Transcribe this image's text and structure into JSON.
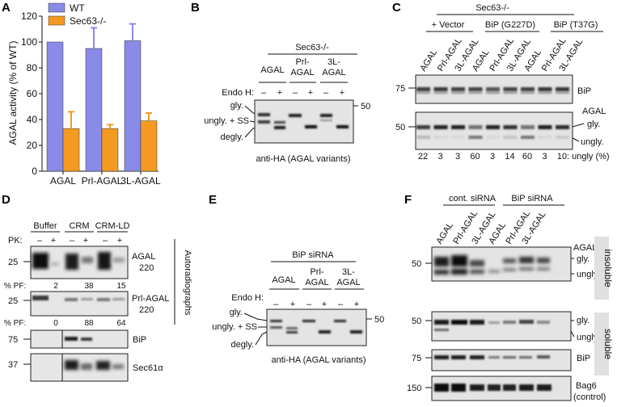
{
  "panels": [
    "A",
    "B",
    "C",
    "D",
    "E",
    "F"
  ],
  "chart_data": {
    "type": "bar",
    "categories": [
      "AGAL",
      "Prl-AGAL",
      "3L-AGAL"
    ],
    "series": [
      {
        "name": "WT",
        "values": [
          100,
          95,
          101
        ],
        "errors": [
          0,
          16,
          13
        ],
        "color": "#8a8ae8"
      },
      {
        "name": "Sec63-/-",
        "values": [
          33,
          33,
          39
        ],
        "errors": [
          13,
          3,
          6
        ],
        "color": "#f49a22"
      }
    ],
    "ylabel": "AGAL activity (% of WT)",
    "ylim": [
      0,
      120
    ],
    "yticks": [
      "0",
      "20",
      "40",
      "60",
      "80",
      "100",
      "120"
    ],
    "legend": "top-left"
  },
  "panelB": {
    "group": "Sec63-/-",
    "lanes": [
      "AGAL",
      "Prl-",
      "AGAL",
      "3L-",
      "AGAL"
    ],
    "endo_label": "Endo H:",
    "signs": [
      "–",
      "+",
      "–",
      "+",
      "–",
      "+"
    ],
    "mw": "50",
    "bands": [
      "gly.",
      "ungly. + SS",
      "degly."
    ],
    "caption": "anti-HA (AGAL variants)"
  },
  "panelC": {
    "group": "Sec63-/-",
    "sub": [
      "+ Vector",
      "BiP (G227D)",
      "BiP (T37G)"
    ],
    "lanes": [
      "AGAL",
      "Prl-AGAL",
      "3L-AGAL",
      "AGAL",
      "Prl-AGAL",
      "3L-AGAL",
      "AGAL",
      "Prl-AGAL",
      "3L-AGAL"
    ],
    "mw_top": "75",
    "mw_bottom": "50",
    "blot_top": "BiP",
    "blot_bottom_title": "AGAL",
    "blot_bottom_bands": [
      "gly.",
      "ungly."
    ],
    "ungly": [
      "22",
      "3",
      "3",
      "60",
      "3",
      "14",
      "60",
      "3",
      "10"
    ],
    "ungly_label": ": ungly (%)"
  },
  "panelD": {
    "groups": [
      "Buffer",
      "CRM",
      "CRM-LD"
    ],
    "pk": "PK:",
    "signs": [
      "–",
      "+",
      "–",
      "+",
      "–",
      "+"
    ],
    "mw": [
      "25",
      "25",
      "75",
      "37"
    ],
    "row1": [
      "AGAL",
      "220"
    ],
    "row2": [
      "Prl-AGAL",
      "220"
    ],
    "pf_label": "% PF:",
    "pf1": [
      "2",
      "38",
      "15"
    ],
    "pf2": [
      "0",
      "88",
      "64"
    ],
    "side": "Autoradiographs",
    "row3": "BiP",
    "row4": "Sec61α"
  },
  "panelE": {
    "group": "BiP siRNA",
    "lanes": [
      "AGAL",
      "Prl-",
      "AGAL",
      "3L-",
      "AGAL"
    ],
    "endo_label": "Endo H:",
    "signs": [
      "–",
      "+",
      "–",
      "+",
      "–",
      "+"
    ],
    "mw": "50",
    "bands": [
      "gly.",
      "ungly. + SS",
      "degly."
    ],
    "caption": "anti-HA (AGAL variants)"
  },
  "panelF": {
    "groups": [
      "cont. siRNA",
      "BiP siRNA"
    ],
    "lanes": [
      "AGAL",
      "Prl-AGAL",
      "3L-AGAL",
      "AGAL",
      "Prl-AGAL",
      "3L-AGAL"
    ],
    "mw": [
      "50",
      "50",
      "75",
      "150"
    ],
    "ins_title": "AGAL",
    "ins_bands": [
      "gly.",
      "ungly."
    ],
    "sol_bands": [
      "gly.",
      "ungly."
    ],
    "bip": "BiP",
    "bag6": [
      "Bag6",
      "(control)"
    ],
    "insoluble": "insoluble",
    "soluble": "soluble",
    "insoluble_color": "#d6336c",
    "soluble_color": "#2e8b57"
  }
}
